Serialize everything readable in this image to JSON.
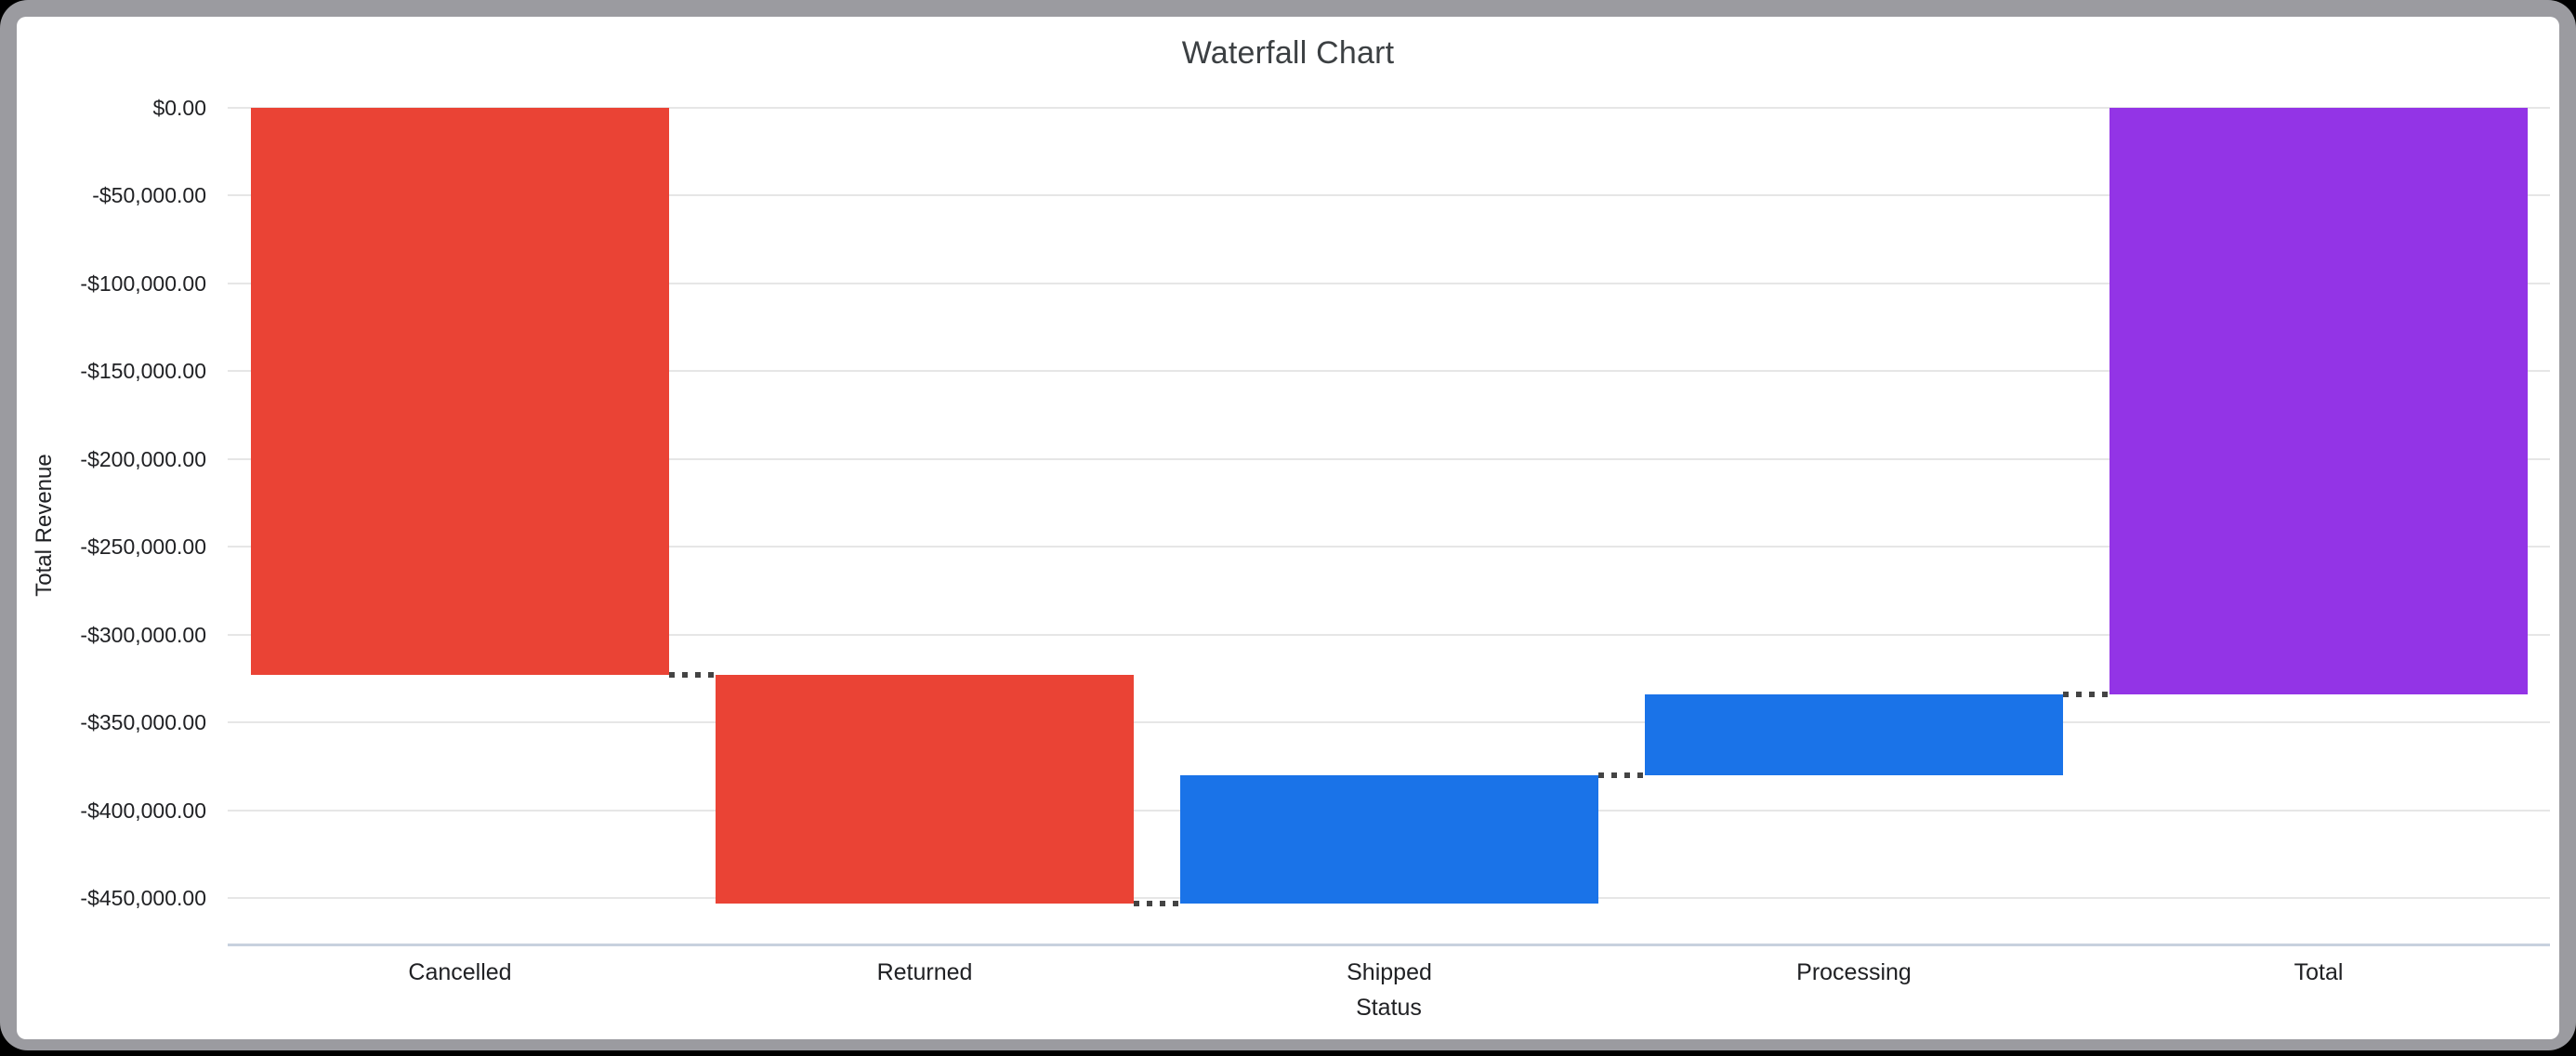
{
  "window": {
    "frame_color": "#9b9ba0",
    "background_color": "#000000",
    "surface_color": "#ffffff"
  },
  "chart": {
    "title": "Waterfall Chart",
    "x_axis_title": "Status",
    "y_axis_title": "Total Revenue"
  },
  "chart_data": {
    "type": "bar",
    "subtype": "waterfall",
    "title": "Waterfall Chart",
    "xlabel": "Status",
    "ylabel": "Total Revenue",
    "legend": "none",
    "grid": true,
    "ylim": [
      -476700,
      0
    ],
    "categories": [
      "Cancelled",
      "Returned",
      "Shipped",
      "Processing",
      "Total"
    ],
    "bars": [
      {
        "label": "Cancelled",
        "start": 0,
        "end": -323000,
        "delta": -323000,
        "role": "decrease"
      },
      {
        "label": "Returned",
        "start": -323000,
        "end": -453400,
        "delta": -130400,
        "role": "decrease"
      },
      {
        "label": "Shipped",
        "start": -453400,
        "end": -380300,
        "delta": 73100,
        "role": "increase"
      },
      {
        "label": "Processing",
        "start": -380300,
        "end": -334100,
        "delta": 46200,
        "role": "increase"
      },
      {
        "label": "Total",
        "start": 0,
        "end": -334100,
        "delta": -334100,
        "role": "total"
      }
    ],
    "colors": {
      "decrease": "#ea4335",
      "increase": "#1a73e8",
      "total": "#9334e6",
      "gridline": "#e6e6e6",
      "baseline": "#c8d1de",
      "connector": "#444444"
    },
    "y_ticks": [
      {
        "label": "$0.00",
        "value": 0
      },
      {
        "label": "-$50,000.00",
        "value": -50000
      },
      {
        "label": "-$100,000.00",
        "value": -100000
      },
      {
        "label": "-$150,000.00",
        "value": -150000
      },
      {
        "label": "-$200,000.00",
        "value": -200000
      },
      {
        "label": "-$250,000.00",
        "value": -250000
      },
      {
        "label": "-$300,000.00",
        "value": -300000
      },
      {
        "label": "-$350,000.00",
        "value": -350000
      },
      {
        "label": "-$400,000.00",
        "value": -400000
      },
      {
        "label": "-$450,000.00",
        "value": -450000
      }
    ]
  }
}
